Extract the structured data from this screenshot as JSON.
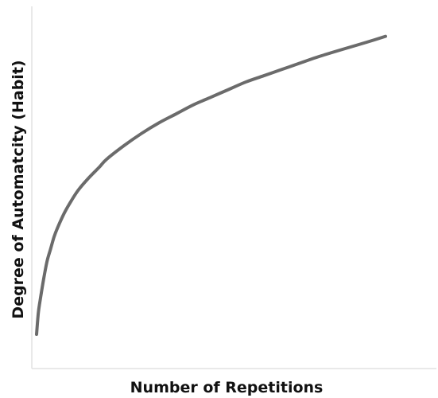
{
  "chart_data": {
    "type": "line",
    "title": "",
    "xlabel": "Number of Repetitions",
    "ylabel": "Degree of Automatcity (Habit)",
    "xlim": [
      0,
      100
    ],
    "ylim": [
      0,
      100
    ],
    "grid": false,
    "legend": "none",
    "series": [
      {
        "x": [
          0,
          0.5,
          1,
          2,
          3,
          4,
          5,
          6,
          8,
          10,
          12,
          15,
          18,
          20,
          25,
          30,
          35,
          40,
          45,
          50,
          55,
          60,
          65,
          70,
          75,
          80,
          85,
          90,
          95,
          100
        ],
        "y": [
          0,
          7,
          11,
          18,
          24,
          28,
          32,
          35,
          40,
          44,
          47.5,
          51.5,
          55,
          57.5,
          62,
          66,
          69.5,
          72.5,
          75.5,
          78,
          80.5,
          83,
          85,
          87,
          89,
          91,
          92.8,
          94.5,
          96.2,
          98
        ],
        "color": "#6b6b6b"
      }
    ]
  }
}
